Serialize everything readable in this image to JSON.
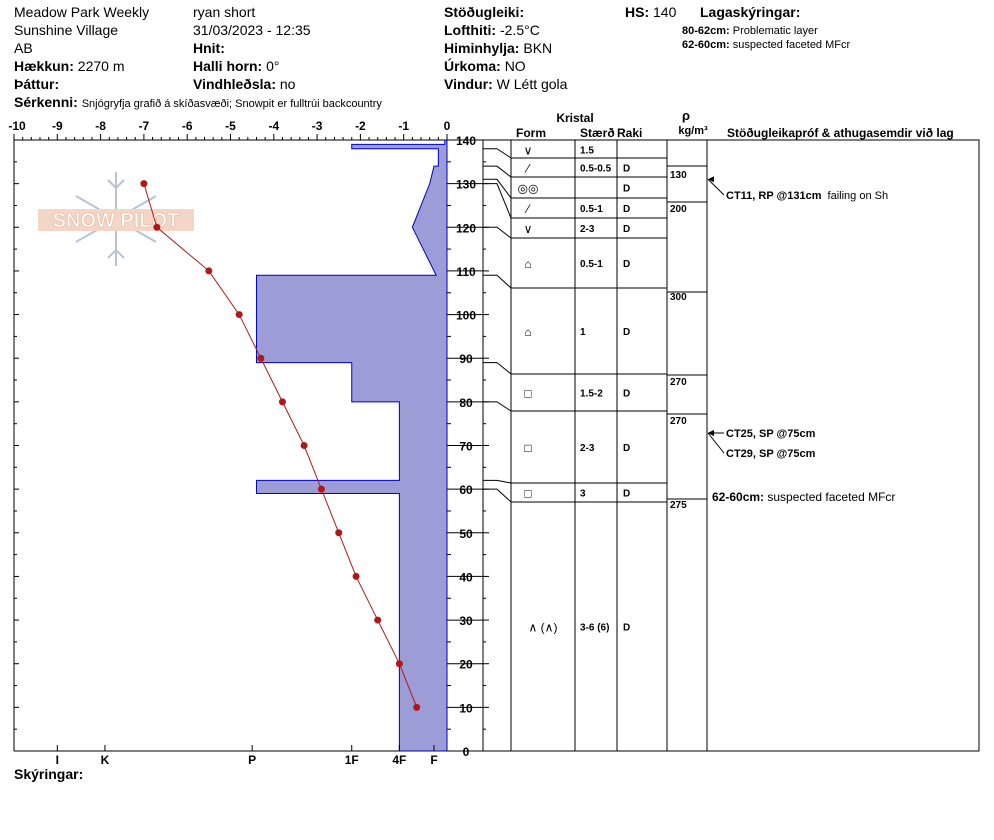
{
  "header": {
    "col1": {
      "line1": "Meadow Park Weekly",
      "line2": "Sunshine Village",
      "line3": "AB",
      "elev_label": "Hækkun:",
      "elev_value": "2270 m",
      "aspect_label": "Þáttur:"
    },
    "col2": {
      "observer": "ryan short",
      "datetime": "31/03/2023 - 12:35",
      "coords_label": "Hnit:",
      "slope_label": "Halli horn:",
      "slope_value": "0°",
      "wind_load_label": "Vindhleðsla:",
      "wind_load_value": "no"
    },
    "col3": {
      "stability_label": "Stöðugleiki:",
      "airtemp_label": "Lofthiti:",
      "airtemp_value": "-2.5°C",
      "sky_label": "Himinhylja:",
      "sky_value": "BKN",
      "precip_label": "Úrkoma:",
      "precip_value": "NO",
      "wind_label": "Vindur:",
      "wind_value": "W Létt gola"
    },
    "hs_label": "HS:",
    "hs_value": "140",
    "layers_legend_title": "Lagaskýringar:",
    "layers_legend": [
      {
        "range": "80-62cm:",
        "text": "Problematic layer"
      },
      {
        "range": "62-60cm:",
        "text": "suspected faceted MFcr"
      }
    ],
    "features_label": "Sérkenni:",
    "features_value": "Snjógryfja grafið á skíðasvæði; Snowpit er fulltrúi backcountry"
  },
  "logo_text": "SNOW PILOT",
  "footer": {
    "comments_label": "Skýringar:"
  },
  "table_headers": {
    "crystal": "Kristal",
    "form": "Form",
    "size": "Stærð",
    "moisture": "Raki",
    "rho": "ρ",
    "density_unit": "kg/m³",
    "tests": "Stöðugleikapróf & athugasemdir við lag"
  },
  "colors": {
    "hardness_fill": "#9c9cd6",
    "hardness_stroke": "#0000cc",
    "temp_line": "#b01818"
  },
  "chart_data": {
    "type": "snow_profile",
    "temperature_axis": {
      "ticks": [
        -10,
        -9,
        -8,
        -7,
        -6,
        -5,
        -4,
        -3,
        -2,
        -1,
        0
      ],
      "tick_labels": [
        "-10",
        "-9",
        "-8",
        "-7",
        "-6",
        "-5",
        "-4",
        "-3",
        "-2",
        "-1",
        "0"
      ],
      "range": [
        -10,
        0
      ]
    },
    "height_axis": {
      "ticks": [
        0,
        10,
        20,
        30,
        40,
        50,
        60,
        70,
        80,
        90,
        100,
        110,
        120,
        130,
        140
      ],
      "tick_labels": [
        "0",
        "10",
        "20",
        "30",
        "40",
        "50",
        "60",
        "70",
        "80",
        "90",
        "100",
        "110",
        "120",
        "130",
        "140"
      ],
      "range": [
        0,
        140
      ],
      "unit": "cm"
    },
    "hardness_axis": {
      "labels": [
        "I",
        "K",
        "P",
        "1F",
        "4F",
        "F"
      ],
      "values": [
        -9,
        -7.9,
        -4.5,
        -2.2,
        -1.1,
        -0.3
      ]
    },
    "temperature_profile": [
      {
        "h": 130,
        "t": -7
      },
      {
        "h": 120,
        "t": -6.7
      },
      {
        "h": 110,
        "t": -5.5
      },
      {
        "h": 100,
        "t": -4.8
      },
      {
        "h": 90,
        "t": -4.3
      },
      {
        "h": 80,
        "t": -3.8
      },
      {
        "h": 70,
        "t": -3.3
      },
      {
        "h": 60,
        "t": -2.9
      },
      {
        "h": 50,
        "t": -2.5
      },
      {
        "h": 40,
        "t": -2.1
      },
      {
        "h": 30,
        "t": -1.6
      },
      {
        "h": 20,
        "t": -1.1
      },
      {
        "h": 10,
        "t": -0.7
      }
    ],
    "hardness_polygon": [
      [
        0,
        -1.1
      ],
      [
        59,
        -1.1
      ],
      [
        59,
        -4.4
      ],
      [
        62,
        -4.4
      ],
      [
        62,
        -1.1
      ],
      [
        80,
        -1.1
      ],
      [
        80,
        -2.2
      ],
      [
        89,
        -2.2
      ],
      [
        89,
        -4.4
      ],
      [
        109,
        -4.4
      ],
      [
        109,
        -0.25
      ],
      [
        120,
        -0.8
      ],
      [
        130,
        -0.4
      ],
      [
        134,
        -0.3
      ],
      [
        134,
        -0.2
      ],
      [
        138,
        -0.2
      ],
      [
        138,
        -2.2
      ],
      [
        139,
        -2.2
      ],
      [
        139,
        -0.05
      ],
      [
        140,
        -0.05
      ],
      [
        140,
        0
      ],
      [
        0,
        0
      ]
    ],
    "layers": [
      {
        "top": 140,
        "bottom": 138,
        "form": "∨",
        "size": "1.5",
        "moisture": "",
        "density": ""
      },
      {
        "top": 138,
        "bottom": 134,
        "form": "⁄",
        "size": "0.5-0.5",
        "moisture": "D",
        "density": "130"
      },
      {
        "top": 134,
        "bottom": 131,
        "form": "◎◎",
        "size": "",
        "moisture": "D",
        "density": ""
      },
      {
        "top": 131,
        "bottom": 130,
        "form": "⁄",
        "size": "0.5-1",
        "moisture": "D",
        "density": "200"
      },
      {
        "top": 130,
        "bottom": 120,
        "form": "∨",
        "size": "2-3",
        "moisture": "D",
        "density": ""
      },
      {
        "top": 120,
        "bottom": 109,
        "form": "⌂",
        "size": "0.5-1",
        "moisture": "D",
        "density": ""
      },
      {
        "top": 109,
        "bottom": 89,
        "form": "⌂",
        "size": "1",
        "moisture": "D",
        "density": "300"
      },
      {
        "top": 89,
        "bottom": 80,
        "form": "□",
        "size": "1.5-2",
        "moisture": "D",
        "density": "270"
      },
      {
        "top": 80,
        "bottom": 62,
        "form": "□",
        "size": "2-3",
        "moisture": "D",
        "density": "270"
      },
      {
        "top": 62,
        "bottom": 60,
        "form": "□",
        "size": "3",
        "moisture": "D",
        "density": "275"
      },
      {
        "top": 60,
        "bottom": 0,
        "form": "∧ (∧)",
        "size": "3-6 (6)",
        "moisture": "D",
        "density": ""
      }
    ],
    "stability_tests": [
      {
        "height": 131,
        "label": "CT11, RP @131cm",
        "note": "failing on Sh"
      },
      {
        "height": 75,
        "label": "CT25, SP @75cm",
        "note": ""
      },
      {
        "height": 75,
        "label": "CT29, SP @75cm",
        "note": ""
      }
    ],
    "layer_comment": {
      "range": "62-60cm:",
      "text": "suspected faceted MFcr"
    }
  }
}
